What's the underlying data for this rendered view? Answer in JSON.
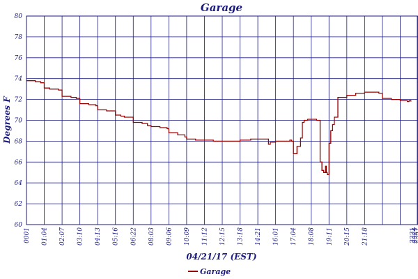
{
  "chart_data": {
    "type": "line",
    "title": "Garage",
    "xlabel": "04/21/17 (EST)",
    "ylabel": "Degrees F",
    "ylim": [
      60,
      80
    ],
    "yticks": [
      60,
      62,
      64,
      66,
      68,
      70,
      72,
      74,
      76,
      78,
      80
    ],
    "xticks": [
      "0001",
      "01:04",
      "02:07",
      "03:10",
      "04:13",
      "05:16",
      "06:22",
      "08:03",
      "09:06",
      "10:09",
      "11:12",
      "12:15",
      "13:18",
      "14:21",
      "16:01",
      "17:04",
      "18:08",
      "19:11",
      "20:15",
      "21:18",
      "2221",
      "2324",
      "2357"
    ],
    "grid": true,
    "legend": {
      "position": "bottom-center",
      "entries": [
        "Garage"
      ]
    },
    "colors": {
      "series": "#990000",
      "axis": "#1a1a80",
      "grid": "#1a1a80"
    },
    "series": [
      {
        "name": "Garage",
        "x": [
          0,
          0.5,
          0.8,
          1.0,
          1.3,
          1.8,
          2.0,
          2.5,
          2.8,
          3.0,
          3.5,
          3.9,
          4.0,
          4.5,
          5.0,
          5.3,
          5.5,
          6.0,
          6.5,
          6.8,
          7.0,
          7.5,
          7.9,
          8.0,
          8.5,
          8.9,
          9.0,
          9.5,
          10.0,
          10.5,
          11.0,
          11.5,
          12.0,
          12.5,
          12.6,
          13.0,
          13.5,
          13.6,
          13.7,
          14.0,
          14.5,
          14.8,
          14.9,
          15.0,
          15.2,
          15.4,
          15.5,
          15.6,
          15.8,
          16.0,
          16.3,
          16.5,
          16.6,
          16.7,
          16.8,
          16.85,
          16.9,
          17.0,
          17.1,
          17.2,
          17.3,
          17.5,
          17.6,
          18.0,
          18.5,
          19.0,
          19.5,
          19.8,
          20.0,
          20.5,
          21.0,
          21.4,
          21.5,
          21.6
        ],
        "values": [
          73.8,
          73.7,
          73.6,
          73.1,
          73.0,
          72.9,
          72.3,
          72.2,
          72.1,
          71.6,
          71.5,
          71.4,
          71.0,
          70.9,
          70.5,
          70.4,
          70.3,
          69.8,
          69.7,
          69.5,
          69.4,
          69.3,
          69.2,
          68.8,
          68.6,
          68.4,
          68.2,
          68.1,
          68.1,
          68.0,
          68.0,
          68.0,
          68.1,
          68.1,
          68.2,
          68.2,
          68.2,
          67.7,
          67.9,
          68.0,
          68.0,
          68.1,
          68.0,
          66.8,
          67.5,
          68.3,
          69.8,
          70.0,
          70.1,
          70.1,
          70.0,
          66.0,
          65.2,
          65.0,
          65.6,
          65.0,
          64.8,
          67.8,
          69.0,
          69.6,
          70.3,
          72.2,
          72.2,
          72.4,
          72.6,
          72.7,
          72.7,
          72.6,
          72.1,
          72.0,
          71.9,
          71.8,
          71.9,
          71.8
        ]
      }
    ]
  }
}
